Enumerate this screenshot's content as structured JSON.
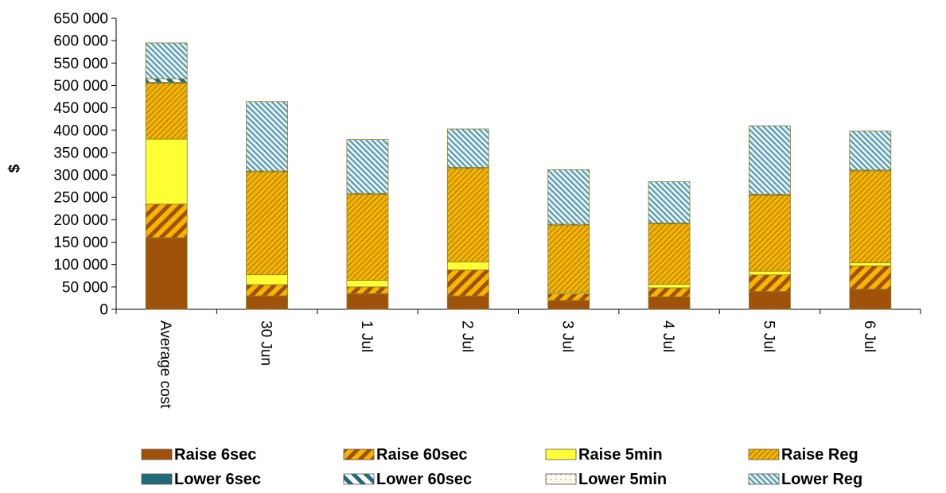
{
  "chart_data": {
    "type": "bar",
    "stacked": true,
    "title": "",
    "xlabel": "",
    "ylabel": "$",
    "ylim": [
      0,
      650000
    ],
    "y_ticks": [
      0,
      50000,
      100000,
      150000,
      200000,
      250000,
      300000,
      350000,
      400000,
      450000,
      500000,
      550000,
      600000,
      650000
    ],
    "y_tick_labels": [
      "0",
      "50 000",
      "100 000",
      "150 000",
      "200 000",
      "250 000",
      "300 000",
      "350 000",
      "400 000",
      "450 000",
      "500 000",
      "550 000",
      "600 000",
      "650 000"
    ],
    "categories": [
      "Average cost",
      "30 Jun",
      "1 Jul",
      "2 Jul",
      "3 Jul",
      "4 Jul",
      "5 Jul",
      "6 Jul"
    ],
    "grid": false,
    "legend_position": "bottom",
    "series": [
      {
        "name": "Raise 6sec",
        "color": "#A0520A",
        "pattern": "solid",
        "values": [
          160000,
          30000,
          35000,
          30000,
          20000,
          28000,
          40000,
          45000
        ]
      },
      {
        "name": "Raise 60sec",
        "color": "#F7B500",
        "pattern": "wide-diagonal",
        "values": [
          75000,
          25000,
          15000,
          58000,
          15000,
          20000,
          37000,
          52000
        ]
      },
      {
        "name": "Raise 5min",
        "color": "#FFFF33",
        "pattern": "solid",
        "values": [
          145000,
          22000,
          15000,
          18000,
          3000,
          8000,
          8000,
          7000
        ]
      },
      {
        "name": "Raise Reg",
        "color": "#F7B500",
        "pattern": "narrow-diagonal",
        "values": [
          125000,
          230000,
          192000,
          209000,
          150000,
          135000,
          170000,
          205000
        ]
      },
      {
        "name": "Lower 6sec",
        "color": "#1F6B7A",
        "pattern": "solid",
        "values": [
          2000,
          0,
          0,
          0,
          0,
          0,
          0,
          0
        ]
      },
      {
        "name": "Lower 60sec",
        "color": "#1F6B7A",
        "pattern": "wide-diagonal",
        "values": [
          8000,
          2000,
          2000,
          2000,
          2000,
          2000,
          2000,
          2000
        ]
      },
      {
        "name": "Lower 5min",
        "color": "#F2EEDC",
        "pattern": "dotted",
        "values": [
          0,
          0,
          0,
          0,
          0,
          0,
          0,
          0
        ]
      },
      {
        "name": "Lower Reg",
        "color": "#3D8FA3",
        "pattern": "narrow-diagonal",
        "values": [
          80000,
          155000,
          120000,
          86000,
          122000,
          92000,
          153000,
          87000
        ]
      }
    ]
  }
}
